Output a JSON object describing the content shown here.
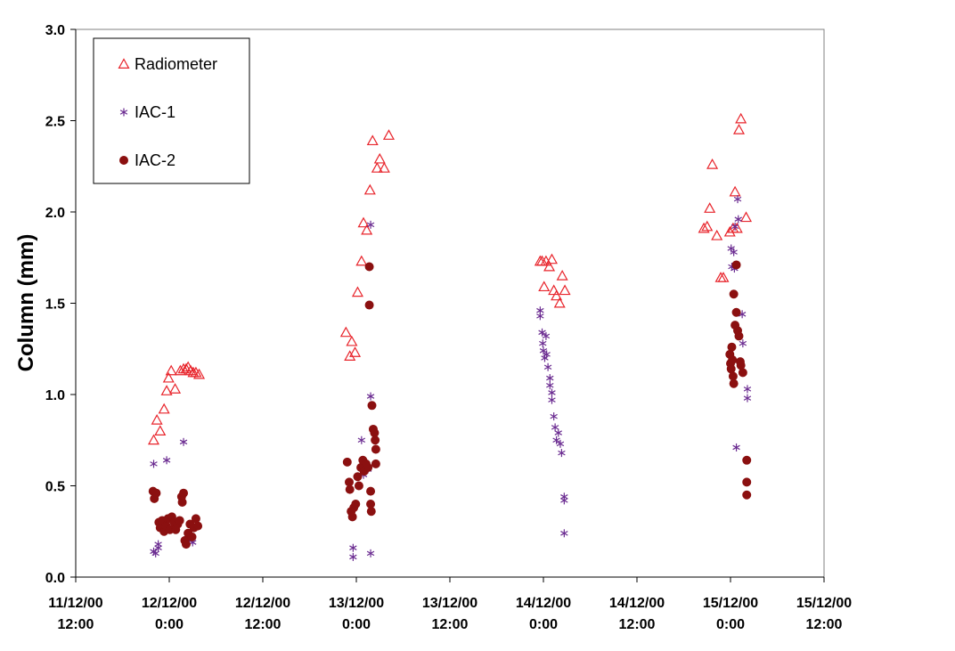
{
  "chart_data": {
    "type": "scatter",
    "title": "",
    "xlabel": "",
    "ylabel": "Column (mm)",
    "xlim": [
      "11/12/00 12:00",
      "15/12/00 12:00"
    ],
    "ylim": [
      0.0,
      3.0
    ],
    "y_ticks": [
      0.0,
      0.5,
      1.0,
      1.5,
      2.0,
      2.5,
      3.0
    ],
    "y_tick_labels": [
      "0.0",
      "0.5",
      "1.0",
      "1.5",
      "2.0",
      "2.5",
      "3.0"
    ],
    "x_ticks": [
      {
        "date": "11/12/00",
        "time": "12:00"
      },
      {
        "date": "12/12/00",
        "time": "0:00"
      },
      {
        "date": "12/12/00",
        "time": "12:00"
      },
      {
        "date": "13/12/00",
        "time": "0:00"
      },
      {
        "date": "13/12/00",
        "time": "12:00"
      },
      {
        "date": "14/12/00",
        "time": "0:00"
      },
      {
        "date": "14/12/00",
        "time": "12:00"
      },
      {
        "date": "15/12/00",
        "time": "0:00"
      },
      {
        "date": "15/12/00",
        "time": "12:00"
      }
    ],
    "grid": false,
    "legend_position": "top-left",
    "series": [
      {
        "name": "Radiometer",
        "marker": "triangle-open",
        "color": "#e8242b",
        "points": [
          [
            "11/12/00 22:00",
            0.75
          ],
          [
            "11/12/00 22:25",
            0.86
          ],
          [
            "11/12/00 22:50",
            0.8
          ],
          [
            "11/12/00 23:20",
            0.92
          ],
          [
            "11/12/00 23:40",
            1.02
          ],
          [
            "11/12/00 23:55",
            1.09
          ],
          [
            "12/12/00 0:15",
            1.13
          ],
          [
            "12/12/00 0:45",
            1.03
          ],
          [
            "12/12/00 1:25",
            1.13
          ],
          [
            "12/12/00 1:50",
            1.14
          ],
          [
            "12/12/00 2:10",
            1.14
          ],
          [
            "12/12/00 2:25",
            1.15
          ],
          [
            "12/12/00 2:45",
            1.13
          ],
          [
            "12/12/00 3:05",
            1.12
          ],
          [
            "12/12/00 3:25",
            1.12
          ],
          [
            "12/12/00 3:50",
            1.11
          ],
          [
            "12/12/00 22:40",
            1.34
          ],
          [
            "12/12/00 23:10",
            1.21
          ],
          [
            "12/12/00 23:25",
            1.29
          ],
          [
            "12/12/00 23:50",
            1.23
          ],
          [
            "13/12/00 0:10",
            1.56
          ],
          [
            "13/12/00 0:40",
            1.73
          ],
          [
            "13/12/00 0:55",
            1.94
          ],
          [
            "13/12/00 1:20",
            1.9
          ],
          [
            "13/12/00 1:45",
            2.12
          ],
          [
            "13/12/00 2:05",
            2.39
          ],
          [
            "13/12/00 2:40",
            2.24
          ],
          [
            "13/12/00 3:00",
            2.29
          ],
          [
            "13/12/00 3:35",
            2.24
          ],
          [
            "13/12/00 4:10",
            2.42
          ],
          [
            "13/12/00 23:35",
            1.73
          ],
          [
            "13/12/00 23:50",
            1.73
          ],
          [
            "14/12/00 0:05",
            1.59
          ],
          [
            "14/12/00 0:20",
            1.73
          ],
          [
            "14/12/00 0:45",
            1.7
          ],
          [
            "14/12/00 1:05",
            1.74
          ],
          [
            "14/12/00 1:20",
            1.57
          ],
          [
            "14/12/00 1:40",
            1.54
          ],
          [
            "14/12/00 2:05",
            1.5
          ],
          [
            "14/12/00 2:25",
            1.65
          ],
          [
            "14/12/00 2:45",
            1.57
          ],
          [
            "14/12/00 20:35",
            1.91
          ],
          [
            "14/12/00 21:00",
            1.92
          ],
          [
            "14/12/00 21:20",
            2.02
          ],
          [
            "14/12/00 21:40",
            2.26
          ],
          [
            "14/12/00 22:15",
            1.87
          ],
          [
            "14/12/00 22:45",
            1.64
          ],
          [
            "14/12/00 23:05",
            1.64
          ],
          [
            "14/12/00 23:55",
            1.89
          ],
          [
            "15/12/00 0:20",
            1.91
          ],
          [
            "15/12/00 0:35",
            2.11
          ],
          [
            "15/12/00 0:50",
            1.91
          ],
          [
            "15/12/00 1:05",
            2.45
          ],
          [
            "15/12/00 1:20",
            2.51
          ],
          [
            "15/12/00 2:00",
            1.97
          ]
        ]
      },
      {
        "name": "IAC-1",
        "marker": "asterisk",
        "color": "#6b2c91",
        "points": [
          [
            "11/12/00 22:00",
            0.62
          ],
          [
            "11/12/00 22:00",
            0.14
          ],
          [
            "11/12/00 22:15",
            0.13
          ],
          [
            "11/12/00 22:35",
            0.18
          ],
          [
            "11/12/00 22:35",
            0.16
          ],
          [
            "11/12/00 23:40",
            0.64
          ],
          [
            "12/12/00 1:50",
            0.74
          ],
          [
            "12/12/00 2:20",
            0.23
          ],
          [
            "12/12/00 2:35",
            0.21
          ],
          [
            "12/12/00 3:00",
            0.19
          ],
          [
            "12/12/00 23:35",
            0.16
          ],
          [
            "12/12/00 23:35",
            0.11
          ],
          [
            "13/12/00 0:40",
            0.75
          ],
          [
            "13/12/00 0:55",
            0.56
          ],
          [
            "13/12/00 1:10",
            0.62
          ],
          [
            "13/12/00 1:30",
            0.59
          ],
          [
            "13/12/00 1:50",
            1.93
          ],
          [
            "13/12/00 1:50",
            0.99
          ],
          [
            "13/12/00 1:50",
            0.13
          ],
          [
            "13/12/00 23:35",
            1.46
          ],
          [
            "13/12/00 23:35",
            1.43
          ],
          [
            "13/12/00 23:50",
            1.34
          ],
          [
            "13/12/00 23:55",
            1.28
          ],
          [
            "14/12/00 0:00",
            1.24
          ],
          [
            "14/12/00 0:10",
            1.2
          ],
          [
            "14/12/00 0:20",
            1.32
          ],
          [
            "14/12/00 0:25",
            1.22
          ],
          [
            "14/12/00 0:35",
            1.15
          ],
          [
            "14/12/00 0:50",
            1.09
          ],
          [
            "14/12/00 0:50",
            1.05
          ],
          [
            "14/12/00 1:05",
            1.01
          ],
          [
            "14/12/00 1:05",
            0.97
          ],
          [
            "14/12/00 1:20",
            0.88
          ],
          [
            "14/12/00 1:30",
            0.82
          ],
          [
            "14/12/00 1:40",
            0.75
          ],
          [
            "14/12/00 1:55",
            0.79
          ],
          [
            "14/12/00 2:10",
            0.73
          ],
          [
            "14/12/00 2:20",
            0.68
          ],
          [
            "14/12/00 2:40",
            0.44
          ],
          [
            "14/12/00 2:40",
            0.42
          ],
          [
            "14/12/00 2:40",
            0.24
          ],
          [
            "15/12/00 0:05",
            1.8
          ],
          [
            "15/12/00 0:10",
            1.7
          ],
          [
            "15/12/00 0:25",
            1.78
          ],
          [
            "15/12/00 0:30",
            1.69
          ],
          [
            "15/12/00 0:35",
            1.92
          ],
          [
            "15/12/00 0:45",
            0.71
          ],
          [
            "15/12/00 0:55",
            2.07
          ],
          [
            "15/12/00 1:00",
            1.96
          ],
          [
            "15/12/00 1:30",
            1.44
          ],
          [
            "15/12/00 1:35",
            1.28
          ],
          [
            "15/12/00 2:10",
            1.03
          ],
          [
            "15/12/00 2:10",
            0.98
          ]
        ]
      },
      {
        "name": "IAC-2",
        "marker": "circle-filled",
        "color": "#8b1010",
        "points": [
          [
            "11/12/00 21:55",
            0.47
          ],
          [
            "11/12/00 22:05",
            0.43
          ],
          [
            "11/12/00 22:20",
            0.46
          ],
          [
            "11/12/00 22:40",
            0.3
          ],
          [
            "11/12/00 22:50",
            0.27
          ],
          [
            "11/12/00 23:05",
            0.31
          ],
          [
            "11/12/00 23:20",
            0.25
          ],
          [
            "11/12/00 23:35",
            0.28
          ],
          [
            "11/12/00 23:50",
            0.32
          ],
          [
            "12/12/00 0:05",
            0.26
          ],
          [
            "12/12/00 0:20",
            0.33
          ],
          [
            "12/12/00 0:35",
            0.3
          ],
          [
            "12/12/00 0:50",
            0.26
          ],
          [
            "12/12/00 1:05",
            0.29
          ],
          [
            "12/12/00 1:20",
            0.31
          ],
          [
            "12/12/00 1:35",
            0.44
          ],
          [
            "12/12/00 1:40",
            0.41
          ],
          [
            "12/12/00 1:50",
            0.46
          ],
          [
            "12/12/00 2:00",
            0.2
          ],
          [
            "12/12/00 2:10",
            0.18
          ],
          [
            "12/12/00 2:25",
            0.24
          ],
          [
            "12/12/00 2:40",
            0.29
          ],
          [
            "12/12/00 2:55",
            0.22
          ],
          [
            "12/12/00 3:10",
            0.27
          ],
          [
            "12/12/00 3:25",
            0.32
          ],
          [
            "12/12/00 3:40",
            0.28
          ],
          [
            "12/12/00 22:50",
            0.63
          ],
          [
            "12/12/00 23:05",
            0.52
          ],
          [
            "12/12/00 23:10",
            0.48
          ],
          [
            "12/12/00 23:20",
            0.36
          ],
          [
            "12/12/00 23:30",
            0.33
          ],
          [
            "12/12/00 23:40",
            0.38
          ],
          [
            "12/12/00 23:55",
            0.4
          ],
          [
            "13/12/00 0:10",
            0.55
          ],
          [
            "13/12/00 0:20",
            0.5
          ],
          [
            "13/12/00 0:35",
            0.6
          ],
          [
            "13/12/00 0:50",
            0.64
          ],
          [
            "13/12/00 1:00",
            0.58
          ],
          [
            "13/12/00 1:15",
            0.62
          ],
          [
            "13/12/00 1:30",
            0.6
          ],
          [
            "13/12/00 1:40",
            1.7
          ],
          [
            "13/12/00 1:40",
            1.49
          ],
          [
            "13/12/00 1:50",
            0.47
          ],
          [
            "13/12/00 1:50",
            0.4
          ],
          [
            "13/12/00 1:55",
            0.36
          ],
          [
            "13/12/00 2:00",
            0.94
          ],
          [
            "13/12/00 2:10",
            0.81
          ],
          [
            "13/12/00 2:20",
            0.79
          ],
          [
            "13/12/00 2:25",
            0.75
          ],
          [
            "13/12/00 2:30",
            0.7
          ],
          [
            "13/12/00 2:30",
            0.62
          ],
          [
            "14/12/00 23:55",
            1.22
          ],
          [
            "15/12/00 0:00",
            1.17
          ],
          [
            "15/12/00 0:05",
            1.14
          ],
          [
            "15/12/00 0:10",
            1.26
          ],
          [
            "15/12/00 0:15",
            1.19
          ],
          [
            "15/12/00 0:20",
            1.1
          ],
          [
            "15/12/00 0:25",
            1.06
          ],
          [
            "15/12/00 0:25",
            1.55
          ],
          [
            "15/12/00 0:35",
            1.38
          ],
          [
            "15/12/00 0:45",
            1.71
          ],
          [
            "15/12/00 0:45",
            1.45
          ],
          [
            "15/12/00 0:55",
            1.35
          ],
          [
            "15/12/00 1:05",
            1.32
          ],
          [
            "15/12/00 1:15",
            1.18
          ],
          [
            "15/12/00 1:20",
            1.16
          ],
          [
            "15/12/00 1:35",
            1.12
          ],
          [
            "15/12/00 2:05",
            0.64
          ],
          [
            "15/12/00 2:05",
            0.52
          ],
          [
            "15/12/00 2:05",
            0.45
          ]
        ]
      }
    ]
  }
}
